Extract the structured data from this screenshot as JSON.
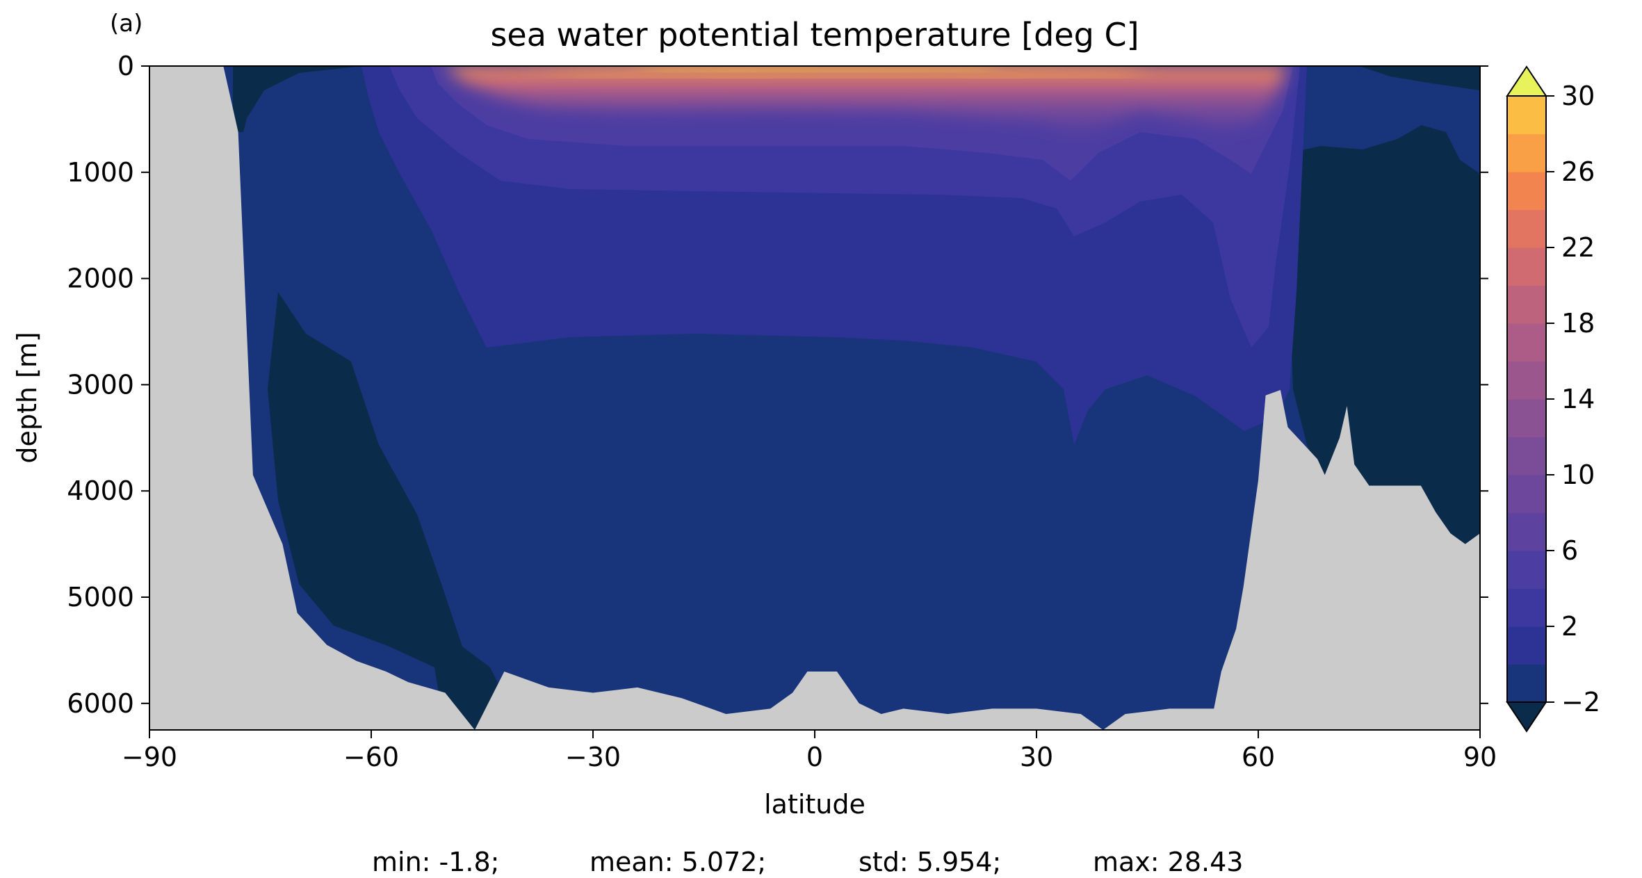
{
  "panel_label": "(a)",
  "stats_line": {
    "min": "min: -1.8;",
    "mean": "mean: 5.072;",
    "std": "std: 5.954;",
    "max": "max: 28.43"
  },
  "chart_data": {
    "type": "heatmap",
    "subtype": "filled-contour",
    "title": "sea water potential temperature [deg C]",
    "xlabel": "latitude",
    "ylabel": "depth [m]",
    "xlim": [
      -90,
      90
    ],
    "ylim": [
      6250,
      0
    ],
    "y_inverted": true,
    "x_ticks": [
      -90,
      -60,
      -30,
      0,
      30,
      60,
      90
    ],
    "x_tick_labels": [
      "−90",
      "−60",
      "−30",
      "0",
      "30",
      "60",
      "90"
    ],
    "y_ticks": [
      0,
      1000,
      2000,
      3000,
      4000,
      5000,
      6000
    ],
    "y_tick_labels": [
      "0",
      "1000",
      "2000",
      "3000",
      "4000",
      "5000",
      "6000"
    ],
    "land_color": "#cbcbcb",
    "colorbar": {
      "levels": [
        -2,
        0,
        2,
        4,
        6,
        8,
        10,
        12,
        14,
        16,
        18,
        20,
        22,
        24,
        26,
        28,
        30
      ],
      "ticks": [
        -2,
        2,
        6,
        10,
        14,
        18,
        22,
        26,
        30
      ],
      "tick_labels": [
        "−2",
        "2",
        "6",
        "10",
        "14",
        "18",
        "22",
        "26",
        "30"
      ],
      "colors": [
        "#0b2b4a",
        "#18347a",
        "#2c3394",
        "#3c38a0",
        "#4c3da2",
        "#5d429f",
        "#6c479c",
        "#7b4c98",
        "#8b5293",
        "#9b578d",
        "#ac5c86",
        "#bd637d",
        "#cf6b71",
        "#e27562",
        "#f2854f",
        "#f99f45",
        "#fbbd44",
        "#f5dc4c"
      ],
      "extend": "both",
      "under_color": "#0b2b4a",
      "over_color": "#e8f25a"
    },
    "bathymetry_depth_profile": {
      "lat": [
        -90,
        -80,
        -78,
        -76,
        -72,
        -70,
        -66,
        -62,
        -58,
        -55,
        -50,
        -46,
        -42,
        -36,
        -30,
        -24,
        -18,
        -12,
        -6,
        -3,
        -1,
        3,
        6,
        9,
        12,
        18,
        24,
        30,
        36,
        39,
        42,
        48,
        54,
        55,
        57,
        58,
        60,
        61,
        63,
        64,
        66,
        68,
        69,
        71,
        72,
        73,
        75,
        82,
        84,
        86,
        88,
        90
      ],
      "depth": [
        0,
        0,
        620,
        3850,
        4500,
        5150,
        5450,
        5600,
        5700,
        5800,
        5900,
        6250,
        5700,
        5850,
        5900,
        5850,
        5950,
        6100,
        6050,
        5900,
        5700,
        5700,
        6000,
        6100,
        6050,
        6100,
        6050,
        6050,
        6100,
        6250,
        6100,
        6050,
        6050,
        5700,
        5300,
        4900,
        3900,
        3100,
        3050,
        3400,
        3550,
        3700,
        3850,
        3500,
        3200,
        3750,
        3950,
        3950,
        4200,
        4400,
        4500,
        4400
      ]
    },
    "annotations": [
      "min: -1.8;",
      "mean: 5.072;",
      "std: 5.954;",
      "max: 28.43"
    ]
  }
}
